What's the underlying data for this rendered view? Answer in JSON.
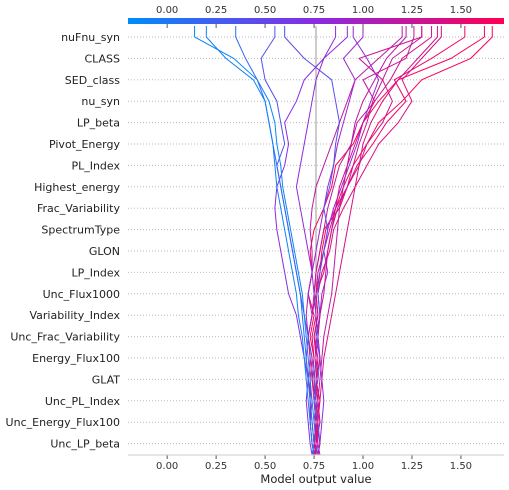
{
  "chart_data": {
    "type": "line",
    "subtype": "shap-decision-plot",
    "title": "",
    "xlabel": "Model output value",
    "ylabel": "",
    "xlim": [
      -0.2,
      1.72
    ],
    "x_ticks": [
      "0.00",
      "0.25",
      "0.50",
      "0.75",
      "1.00",
      "1.25",
      "1.50"
    ],
    "x_tick_values": [
      0.0,
      0.25,
      0.5,
      0.75,
      1.0,
      1.25,
      1.5
    ],
    "base_value": 0.76,
    "grid": "horizontal dotted",
    "colorbar": {
      "position": "top",
      "low_color": "#008bfb",
      "high_color": "#ff0052"
    },
    "features": [
      "nuFnu_syn",
      "CLASS",
      "SED_class",
      "nu_syn",
      "LP_beta",
      "Pivot_Energy",
      "PL_Index",
      "Highest_energy",
      "Frac_Variability",
      "SpectrumType",
      "GLON",
      "LP_Index",
      "Unc_Flux1000",
      "Variability_Index",
      "Unc_Frac_Variability",
      "Energy_Flux100",
      "GLAT",
      "Unc_PL_Index",
      "Unc_Energy_Flux100",
      "Unc_LP_beta"
    ],
    "series": [
      {
        "values": [
          0.76,
          0.75,
          0.77,
          0.76,
          0.74,
          0.75,
          0.73,
          0.75,
          0.72,
          0.74,
          0.73,
          0.75,
          0.8,
          0.84,
          0.86,
          0.95,
          1.0,
          1.08,
          1.18,
          1.45,
          1.62
        ]
      },
      {
        "values": [
          0.77,
          0.78,
          0.76,
          0.78,
          0.76,
          0.77,
          0.75,
          0.77,
          0.76,
          0.78,
          0.79,
          0.81,
          0.86,
          0.9,
          0.95,
          1.02,
          1.08,
          1.2,
          1.3,
          1.55,
          1.66
        ]
      },
      {
        "values": [
          0.76,
          0.77,
          0.75,
          0.76,
          0.74,
          0.75,
          0.74,
          0.76,
          0.75,
          0.76,
          0.78,
          0.8,
          0.88,
          0.92,
          0.97,
          1.05,
          1.12,
          1.22,
          1.16,
          1.35,
          1.52
        ]
      },
      {
        "values": [
          0.75,
          0.76,
          0.78,
          0.77,
          0.75,
          0.76,
          0.76,
          0.78,
          0.77,
          0.79,
          0.83,
          0.85,
          0.9,
          0.96,
          1.02,
          1.08,
          1.18,
          1.25,
          1.2,
          1.3,
          1.4
        ]
      },
      {
        "values": [
          0.74,
          0.75,
          0.76,
          0.75,
          0.77,
          0.76,
          0.75,
          0.77,
          0.76,
          0.77,
          0.8,
          0.83,
          0.86,
          0.92,
          0.98,
          1.02,
          1.1,
          1.15,
          1.1,
          1.15,
          1.3
        ]
      },
      {
        "values": [
          0.75,
          0.74,
          0.73,
          0.74,
          0.72,
          0.73,
          0.72,
          0.74,
          0.75,
          0.76,
          0.78,
          0.8,
          0.82,
          0.85,
          0.88,
          0.94,
          0.97,
          1.06,
          1.0,
          1.22,
          1.26
        ]
      },
      {
        "values": [
          0.76,
          0.75,
          0.74,
          0.73,
          0.73,
          0.74,
          0.72,
          0.71,
          0.72,
          0.74,
          0.74,
          0.73,
          0.74,
          0.76,
          0.8,
          0.84,
          0.88,
          0.92,
          0.96,
          1.08,
          1.2
        ]
      },
      {
        "values": [
          0.77,
          0.76,
          0.78,
          0.77,
          0.78,
          0.79,
          0.8,
          0.82,
          0.84,
          0.85,
          0.86,
          0.87,
          0.88,
          0.9,
          0.92,
          0.94,
          0.96,
          1.0,
          1.06,
          1.12,
          1.22
        ]
      },
      {
        "values": [
          0.78,
          0.77,
          0.76,
          0.75,
          0.74,
          0.73,
          0.72,
          0.74,
          0.76,
          0.8,
          0.82,
          0.84,
          0.87,
          0.92,
          0.95,
          0.98,
          1.02,
          1.05,
          1.1,
          0.98,
          1.3
        ]
      },
      {
        "values": [
          0.75,
          0.76,
          0.77,
          0.76,
          0.75,
          0.76,
          0.77,
          0.78,
          0.79,
          0.82,
          0.8,
          0.82,
          0.85,
          0.89,
          0.93,
          0.97,
          1.0,
          1.04,
          1.08,
          1.02,
          0.95
        ]
      },
      {
        "values": [
          0.74,
          0.73,
          0.72,
          0.71,
          0.72,
          0.7,
          0.68,
          0.66,
          0.62,
          0.6,
          0.58,
          0.56,
          0.55,
          0.56,
          0.6,
          0.62,
          0.6,
          0.66,
          0.7,
          0.8,
          0.86
        ]
      },
      {
        "values": [
          0.75,
          0.74,
          0.73,
          0.73,
          0.72,
          0.71,
          0.72,
          0.74,
          0.72,
          0.74,
          0.76,
          0.78,
          0.8,
          0.82,
          0.85,
          0.87,
          0.9,
          0.93,
          0.96,
          0.9,
          1.0
        ]
      },
      {
        "values": [
          0.76,
          0.75,
          0.76,
          0.75,
          0.77,
          0.78,
          0.76,
          0.78,
          0.77,
          0.78,
          0.8,
          0.82,
          0.8,
          0.83,
          0.85,
          0.86,
          0.88,
          0.86,
          0.84,
          0.7,
          0.6
        ]
      },
      {
        "values": [
          0.77,
          0.78,
          0.77,
          0.76,
          0.75,
          0.74,
          0.72,
          0.7,
          0.68,
          0.66,
          0.64,
          0.62,
          0.6,
          0.58,
          0.56,
          0.6,
          0.58,
          0.56,
          0.5,
          0.48,
          0.55
        ]
      },
      {
        "values": [
          0.74,
          0.75,
          0.74,
          0.73,
          0.72,
          0.71,
          0.7,
          0.69,
          0.68,
          0.66,
          0.64,
          0.62,
          0.6,
          0.58,
          0.56,
          0.54,
          0.52,
          0.5,
          0.46,
          0.4,
          0.35
        ]
      },
      {
        "values": [
          0.75,
          0.74,
          0.73,
          0.72,
          0.71,
          0.7,
          0.69,
          0.67,
          0.66,
          0.64,
          0.62,
          0.6,
          0.58,
          0.56,
          0.55,
          0.54,
          0.52,
          0.5,
          0.44,
          0.3,
          0.2
        ]
      },
      {
        "values": [
          0.76,
          0.76,
          0.75,
          0.74,
          0.73,
          0.72,
          0.71,
          0.7,
          0.69,
          0.67,
          0.65,
          0.63,
          0.61,
          0.59,
          0.58,
          0.56,
          0.55,
          0.52,
          0.46,
          0.34,
          0.14
        ]
      },
      {
        "values": [
          0.75,
          0.76,
          0.77,
          0.78,
          0.79,
          0.8,
          0.82,
          0.84,
          0.86,
          0.88,
          0.9,
          0.92,
          0.94,
          0.96,
          0.98,
          1.0,
          1.04,
          1.1,
          1.18,
          1.28,
          1.38
        ]
      },
      {
        "values": [
          0.76,
          0.75,
          0.76,
          0.77,
          0.76,
          0.78,
          0.77,
          0.78,
          0.8,
          0.81,
          0.82,
          0.84,
          0.86,
          0.88,
          0.92,
          0.96,
          1.0,
          1.06,
          1.14,
          1.2,
          1.35
        ]
      },
      {
        "values": [
          0.77,
          0.78,
          0.79,
          0.8,
          0.79,
          0.78,
          0.77,
          0.76,
          0.75,
          0.74,
          0.72,
          0.7,
          0.68,
          0.66,
          0.68,
          0.7,
          0.72,
          0.74,
          0.76,
          0.8,
          0.92
        ]
      }
    ]
  }
}
